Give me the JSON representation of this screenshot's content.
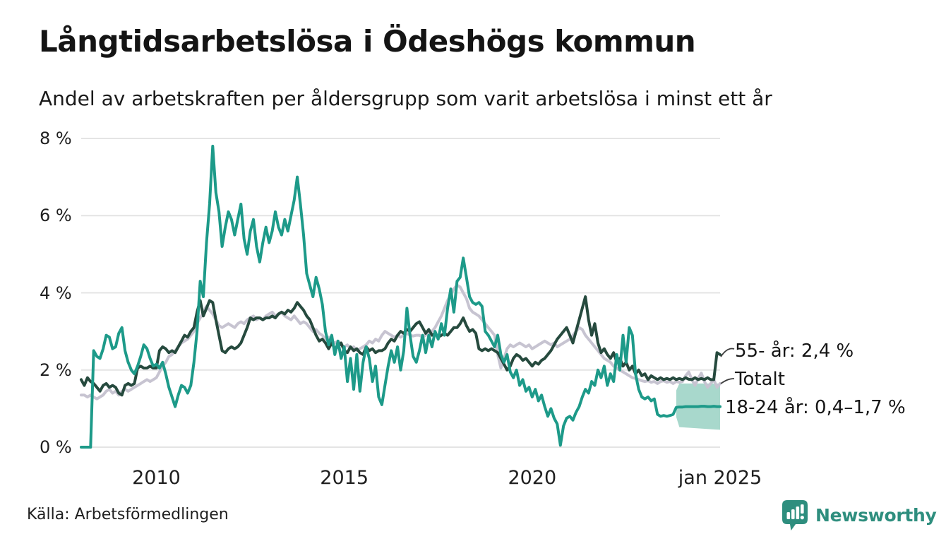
{
  "header": {
    "title": "Långtidsarbetslösa i Ödeshögs kommun",
    "subtitle": "Andel av arbetskraften per åldersgrupp som varit arbetslösa i minst ett år"
  },
  "chart_data": {
    "type": "line",
    "title": "Långtidsarbetslösa i Ödeshögs kommun",
    "subtitle": "Andel av arbetskraften per åldersgrupp som varit arbetslösa i minst ett år",
    "x_start": "jan 2008",
    "x_end": "jan 2025",
    "frequency": "monthly",
    "ylim": [
      0,
      8
    ],
    "grid": true,
    "grid_color": "#e4e4e4",
    "yticks": [
      {
        "value": 8,
        "label": "8 %"
      },
      {
        "value": 6,
        "label": "6 %"
      },
      {
        "value": 4,
        "label": "4 %"
      },
      {
        "value": 2,
        "label": "2 %"
      },
      {
        "value": 0,
        "label": "0 %"
      }
    ],
    "xticks": [
      {
        "index": 24,
        "label": "2010"
      },
      {
        "index": 84,
        "label": "2015"
      },
      {
        "index": 144,
        "label": "2020"
      },
      {
        "index": 204,
        "label": "jan 2025"
      }
    ],
    "series": [
      {
        "key": "totalt",
        "name": "Totalt",
        "color": "#c7c4d1",
        "latest_value": 1.65,
        "values": [
          1.35,
          1.35,
          1.3,
          1.35,
          1.3,
          1.25,
          1.3,
          1.35,
          1.45,
          1.5,
          1.4,
          1.45,
          1.35,
          1.45,
          1.5,
          1.45,
          1.5,
          1.55,
          1.6,
          1.65,
          1.7,
          1.75,
          1.7,
          1.75,
          1.8,
          1.95,
          2.1,
          2.2,
          2.35,
          2.4,
          2.5,
          2.6,
          2.7,
          2.75,
          2.8,
          2.9,
          3.0,
          3.2,
          3.35,
          3.5,
          3.65,
          3.55,
          3.45,
          3.3,
          3.15,
          3.1,
          3.15,
          3.2,
          3.15,
          3.1,
          3.2,
          3.25,
          3.2,
          3.3,
          3.35,
          3.4,
          3.3,
          3.35,
          3.3,
          3.4,
          3.45,
          3.5,
          3.4,
          3.45,
          3.5,
          3.4,
          3.35,
          3.3,
          3.4,
          3.3,
          3.2,
          3.25,
          3.2,
          3.1,
          3.0,
          3.05,
          2.95,
          2.9,
          2.8,
          2.85,
          2.75,
          2.7,
          2.75,
          2.65,
          2.6,
          2.65,
          2.55,
          2.6,
          2.5,
          2.55,
          2.6,
          2.65,
          2.75,
          2.7,
          2.8,
          2.75,
          2.9,
          3.0,
          2.95,
          2.9,
          2.85,
          2.9,
          2.85,
          2.9,
          2.95,
          2.9,
          2.88,
          2.9,
          2.9,
          2.85,
          2.9,
          2.95,
          3.0,
          3.1,
          3.25,
          3.4,
          3.6,
          3.8,
          3.95,
          4.1,
          4.2,
          4.15,
          4.0,
          3.85,
          3.6,
          3.5,
          3.45,
          3.4,
          3.3,
          3.2,
          3.1,
          3.0,
          2.9,
          2.4,
          2.05,
          2.3,
          2.55,
          2.65,
          2.6,
          2.65,
          2.7,
          2.65,
          2.6,
          2.65,
          2.55,
          2.6,
          2.65,
          2.7,
          2.75,
          2.7,
          2.65,
          2.7,
          2.6,
          2.65,
          2.7,
          2.75,
          2.8,
          2.9,
          3.0,
          3.1,
          3.05,
          2.9,
          2.8,
          2.7,
          2.6,
          2.5,
          2.4,
          2.3,
          2.25,
          2.2,
          2.1,
          2.05,
          2.0,
          1.95,
          1.9,
          1.85,
          1.8,
          1.78,
          1.75,
          1.72,
          1.7,
          1.72,
          1.68,
          1.7,
          1.65,
          1.7,
          1.72,
          1.68,
          1.7,
          1.65,
          1.7,
          1.68,
          1.7,
          1.85,
          1.95,
          1.75,
          1.6,
          1.78,
          1.92,
          1.7,
          1.55,
          1.65,
          1.75,
          1.55,
          1.65
        ]
      },
      {
        "key": "55-ar",
        "name": "55- år",
        "color": "#264a3e",
        "latest_value": 2.4,
        "latest_label": "2,4 %",
        "values": [
          1.75,
          1.6,
          1.8,
          1.7,
          1.65,
          1.55,
          1.45,
          1.6,
          1.65,
          1.55,
          1.6,
          1.55,
          1.4,
          1.35,
          1.6,
          1.65,
          1.6,
          1.65,
          2.05,
          2.1,
          2.05,
          2.05,
          2.1,
          2.05,
          2.05,
          2.5,
          2.6,
          2.55,
          2.45,
          2.5,
          2.45,
          2.6,
          2.75,
          2.9,
          2.85,
          3.0,
          3.1,
          3.5,
          3.8,
          3.4,
          3.6,
          3.8,
          3.75,
          3.3,
          2.9,
          2.5,
          2.45,
          2.55,
          2.6,
          2.55,
          2.6,
          2.7,
          2.9,
          3.1,
          3.35,
          3.3,
          3.35,
          3.35,
          3.3,
          3.35,
          3.35,
          3.4,
          3.35,
          3.45,
          3.5,
          3.45,
          3.55,
          3.5,
          3.6,
          3.75,
          3.65,
          3.55,
          3.4,
          3.3,
          3.1,
          2.9,
          2.75,
          2.8,
          2.7,
          2.55,
          2.7,
          2.55,
          2.6,
          2.7,
          2.5,
          2.45,
          2.6,
          2.5,
          2.55,
          2.45,
          2.4,
          2.6,
          2.5,
          2.55,
          2.45,
          2.5,
          2.5,
          2.55,
          2.7,
          2.8,
          2.75,
          2.9,
          3.0,
          2.95,
          3.05,
          3.0,
          3.1,
          3.2,
          3.25,
          3.1,
          2.95,
          3.05,
          2.9,
          2.95,
          2.85,
          2.9,
          2.95,
          2.9,
          3.0,
          3.1,
          3.1,
          3.2,
          3.35,
          3.15,
          3.0,
          3.05,
          2.95,
          2.55,
          2.5,
          2.55,
          2.5,
          2.55,
          2.5,
          2.45,
          2.3,
          2.15,
          2.0,
          2.1,
          2.3,
          2.4,
          2.35,
          2.25,
          2.3,
          2.2,
          2.1,
          2.2,
          2.15,
          2.25,
          2.3,
          2.4,
          2.5,
          2.65,
          2.8,
          2.9,
          3.0,
          3.1,
          2.9,
          2.7,
          3.0,
          3.3,
          3.6,
          3.9,
          3.3,
          2.9,
          3.2,
          2.7,
          2.45,
          2.55,
          2.4,
          2.3,
          2.45,
          2.2,
          2.3,
          2.1,
          2.2,
          2.0,
          2.1,
          1.9,
          2.0,
          1.85,
          1.9,
          1.75,
          1.85,
          1.8,
          1.75,
          1.8,
          1.75,
          1.78,
          1.75,
          1.8,
          1.75,
          1.78,
          1.75,
          1.8,
          1.76,
          1.75,
          1.8,
          1.75,
          1.78,
          1.75,
          1.8,
          1.75,
          1.75,
          2.45,
          2.4
        ]
      },
      {
        "key": "18-24-ar",
        "name": "18-24 år",
        "color": "#1d9a89",
        "latest_label": "0,4–1,7 %",
        "values": [
          0,
          0,
          0,
          0,
          2.5,
          2.35,
          2.3,
          2.55,
          2.9,
          2.85,
          2.55,
          2.6,
          2.95,
          3.1,
          2.5,
          2.2,
          2.0,
          1.9,
          2.1,
          2.35,
          2.65,
          2.55,
          2.3,
          2.1,
          2.15,
          2.05,
          2.2,
          1.9,
          1.55,
          1.3,
          1.05,
          1.35,
          1.6,
          1.55,
          1.4,
          1.6,
          2.2,
          3.0,
          4.3,
          3.9,
          5.3,
          6.3,
          7.8,
          6.6,
          6.1,
          5.2,
          5.7,
          6.1,
          5.9,
          5.5,
          5.9,
          6.3,
          5.4,
          5.0,
          5.6,
          5.9,
          5.2,
          4.8,
          5.3,
          5.7,
          5.3,
          5.6,
          6.1,
          5.7,
          5.5,
          5.9,
          5.6,
          6.0,
          6.4,
          7.0,
          6.3,
          5.5,
          4.5,
          4.2,
          3.9,
          4.4,
          4.1,
          3.7,
          3.0,
          2.65,
          2.9,
          2.4,
          2.75,
          2.3,
          2.6,
          1.7,
          2.3,
          1.5,
          2.4,
          1.45,
          2.2,
          2.6,
          2.3,
          1.7,
          2.1,
          1.3,
          1.1,
          1.6,
          2.1,
          2.5,
          2.2,
          2.6,
          2.0,
          2.5,
          3.6,
          2.9,
          2.35,
          2.2,
          2.5,
          2.9,
          2.45,
          2.9,
          2.6,
          3.0,
          2.8,
          3.2,
          2.9,
          3.6,
          4.1,
          3.5,
          4.3,
          4.4,
          4.9,
          4.4,
          3.9,
          3.75,
          3.7,
          3.75,
          3.65,
          3.0,
          2.9,
          2.75,
          2.6,
          2.9,
          2.4,
          2.2,
          2.4,
          1.95,
          1.8,
          2.0,
          1.6,
          1.75,
          1.45,
          1.55,
          1.3,
          1.5,
          1.2,
          1.35,
          1.05,
          0.8,
          1.0,
          0.75,
          0.6,
          0.05,
          0.55,
          0.75,
          0.8,
          0.7,
          0.9,
          1.05,
          1.3,
          1.5,
          1.4,
          1.7,
          1.6,
          2.0,
          1.8,
          2.1,
          1.6,
          1.9,
          1.7,
          2.4,
          2.0,
          2.9,
          2.2,
          3.1,
          2.9,
          1.9,
          1.5,
          1.3,
          1.25,
          1.3,
          1.2,
          1.25,
          0.85,
          0.8,
          0.82,
          0.8,
          0.82,
          0.85,
          1.03,
          1.04,
          1.04,
          1.05,
          1.05,
          1.05,
          1.05,
          1.05,
          1.06,
          1.06,
          1.05,
          1.05,
          1.06,
          1.05,
          1.05
        ]
      }
    ],
    "band": {
      "series": "18-24 år",
      "start_index": 190,
      "upper": 1.65,
      "lower": 0.45,
      "color": "#a8d8cc",
      "label": "0,4–1,7 %"
    },
    "end_labels": [
      {
        "id": "older",
        "text": "55- år: 2,4 %"
      },
      {
        "id": "total",
        "text": "Totalt"
      },
      {
        "id": "young",
        "text": "18-24 år: 0,4–1,7 %"
      }
    ],
    "legend_position": "right-of-line-ends"
  },
  "footer": {
    "source": "Källa: Arbetsförmedlingen",
    "logo_text": "Newsworthy"
  },
  "colors": {
    "accent_teal": "#1d9a89",
    "dark_green": "#264a3e",
    "total_gray": "#c7c4d1",
    "band_fill": "#a8d8cc",
    "brand_teal": "#2e8e7e",
    "grid": "#e4e4e4",
    "text": "#1a1a1a"
  }
}
